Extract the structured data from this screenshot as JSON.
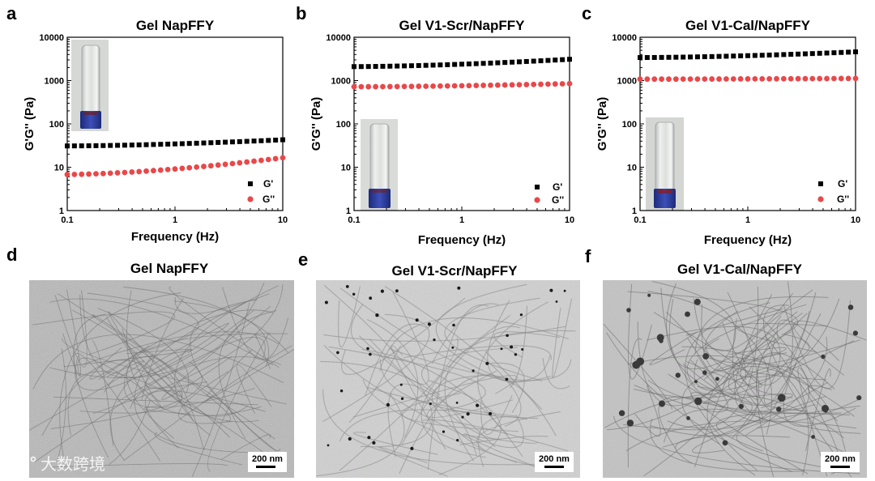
{
  "panel_letters": [
    "a",
    "b",
    "c",
    "d",
    "e",
    "f"
  ],
  "colors": {
    "g_prime": "#000000",
    "g_double_prime": "#e8484a",
    "vial_cap": "#2a3a9a"
  },
  "watermark": {
    "icon": "share-icon",
    "text": "大数跨境"
  },
  "chart_data": [
    {
      "type": "scatter",
      "title": "Gel NapFFY",
      "xlabel": "Frequency (Hz)",
      "ylabel": "G'G'' (Pa)",
      "xscale": "log",
      "yscale": "log",
      "xlim": [
        0.1,
        10
      ],
      "ylim": [
        1,
        10000
      ],
      "xticks": [
        "0.1",
        "1",
        "10"
      ],
      "yticks": [
        "1",
        "10",
        "100",
        "1000",
        "10000"
      ],
      "legend": [
        "G'",
        "G''"
      ],
      "legend_position": "bottom-right",
      "inset": "vial",
      "inset_position": "top-left",
      "series": [
        {
          "name": "G'",
          "marker": "square",
          "start": 31,
          "end": 43
        },
        {
          "name": "G''",
          "marker": "circle",
          "start": 6.8,
          "end": 16.5
        }
      ]
    },
    {
      "type": "scatter",
      "title": "Gel V1-Scr/NapFFY",
      "xlabel": "Frequency (Hz)",
      "ylabel": "G'G'' (Pa)",
      "xscale": "log",
      "yscale": "log",
      "xlim": [
        0.1,
        10
      ],
      "ylim": [
        1,
        10000
      ],
      "xticks": [
        "0.1",
        "1",
        "10"
      ],
      "yticks": [
        "1",
        "10",
        "100",
        "1000",
        "10000"
      ],
      "legend": [
        "G'",
        "G''"
      ],
      "legend_position": "bottom-right",
      "inset": "vial",
      "inset_position": "bottom-left",
      "series": [
        {
          "name": "G'",
          "marker": "square",
          "start": 2100,
          "end": 3100
        },
        {
          "name": "G''",
          "marker": "circle",
          "start": 720,
          "end": 850
        }
      ]
    },
    {
      "type": "scatter",
      "title": "Gel V1-Cal/NapFFY",
      "xlabel": "Frequency (Hz)",
      "ylabel": "G'G'' (Pa)",
      "xscale": "log",
      "yscale": "log",
      "xlim": [
        0.1,
        10
      ],
      "ylim": [
        1,
        10000
      ],
      "xticks": [
        "0.1",
        "1",
        "10"
      ],
      "yticks": [
        "1",
        "10",
        "100",
        "1000",
        "10000"
      ],
      "legend": [
        "G'",
        "G''"
      ],
      "legend_position": "bottom-right",
      "inset": "vial",
      "inset_position": "bottom-left",
      "series": [
        {
          "name": "G'",
          "marker": "square",
          "start": 3400,
          "end": 4600
        },
        {
          "name": "G''",
          "marker": "circle",
          "start": 1080,
          "end": 1120
        }
      ]
    }
  ],
  "tem_images": [
    {
      "title": "Gel NapFFY",
      "scale_bar": "200 nm",
      "dots": "none"
    },
    {
      "title": "Gel V1-Scr/NapFFY",
      "scale_bar": "200 nm",
      "dots": "small"
    },
    {
      "title": "Gel V1-Cal/NapFFY",
      "scale_bar": "200 nm",
      "dots": "large"
    }
  ]
}
